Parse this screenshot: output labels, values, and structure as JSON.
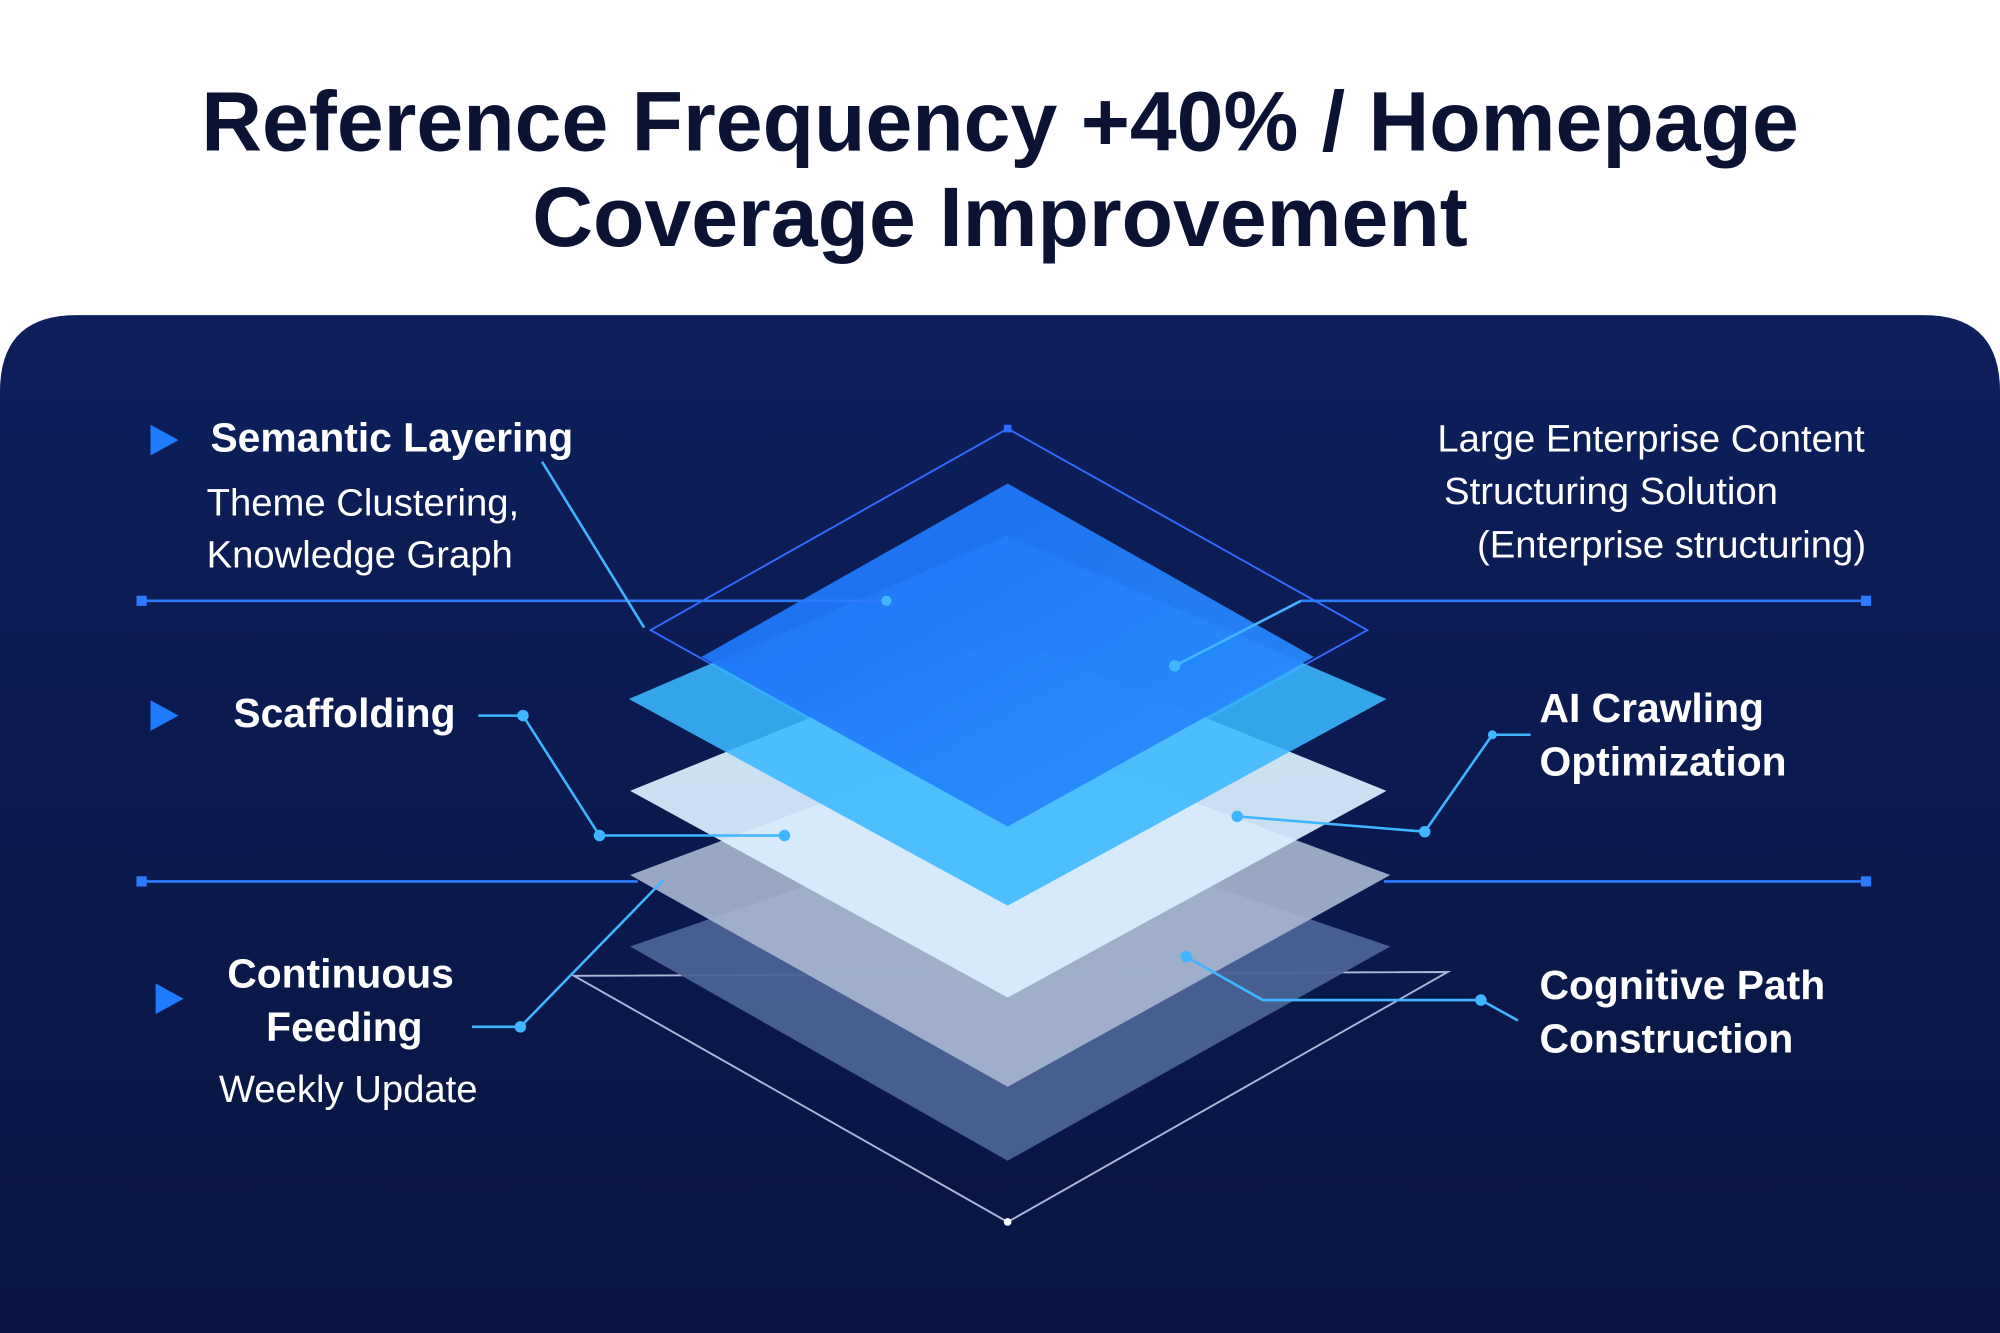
{
  "title": {
    "line1": "Reference Frequency +40% / Homepage",
    "line2": "Coverage Improvement"
  },
  "left_items": [
    {
      "title": "Semantic Layering",
      "sub1": "Theme Clustering,",
      "sub2": "Knowledge Graph",
      "icon": "triangle-right-icon"
    },
    {
      "title": "Scaffolding",
      "icon": "triangle-right-icon"
    },
    {
      "title1": "Continuous",
      "title2": "Feeding",
      "sub1": "Weekly Update",
      "icon": "triangle-right-icon"
    }
  ],
  "right_items": [
    {
      "line1": "Large Enterprise Content",
      "line2": "Structuring Solution",
      "line3": "(Enterprise structuring)"
    },
    {
      "line1": "AI Crawling",
      "line2": "Optimization"
    },
    {
      "line1": "Cognitive Path",
      "line2": "Construction"
    }
  ],
  "colors": {
    "panel_top": "#0d1f5c",
    "panel_bottom": "#081540",
    "accent": "#1f7bff",
    "connector": "#3fb6ff",
    "layer1": "#1f7fff",
    "layer2": "#3ab8ff",
    "layer3": "#dcefff",
    "layer4": "#a9b8cf",
    "layer5": "#4b6394"
  }
}
